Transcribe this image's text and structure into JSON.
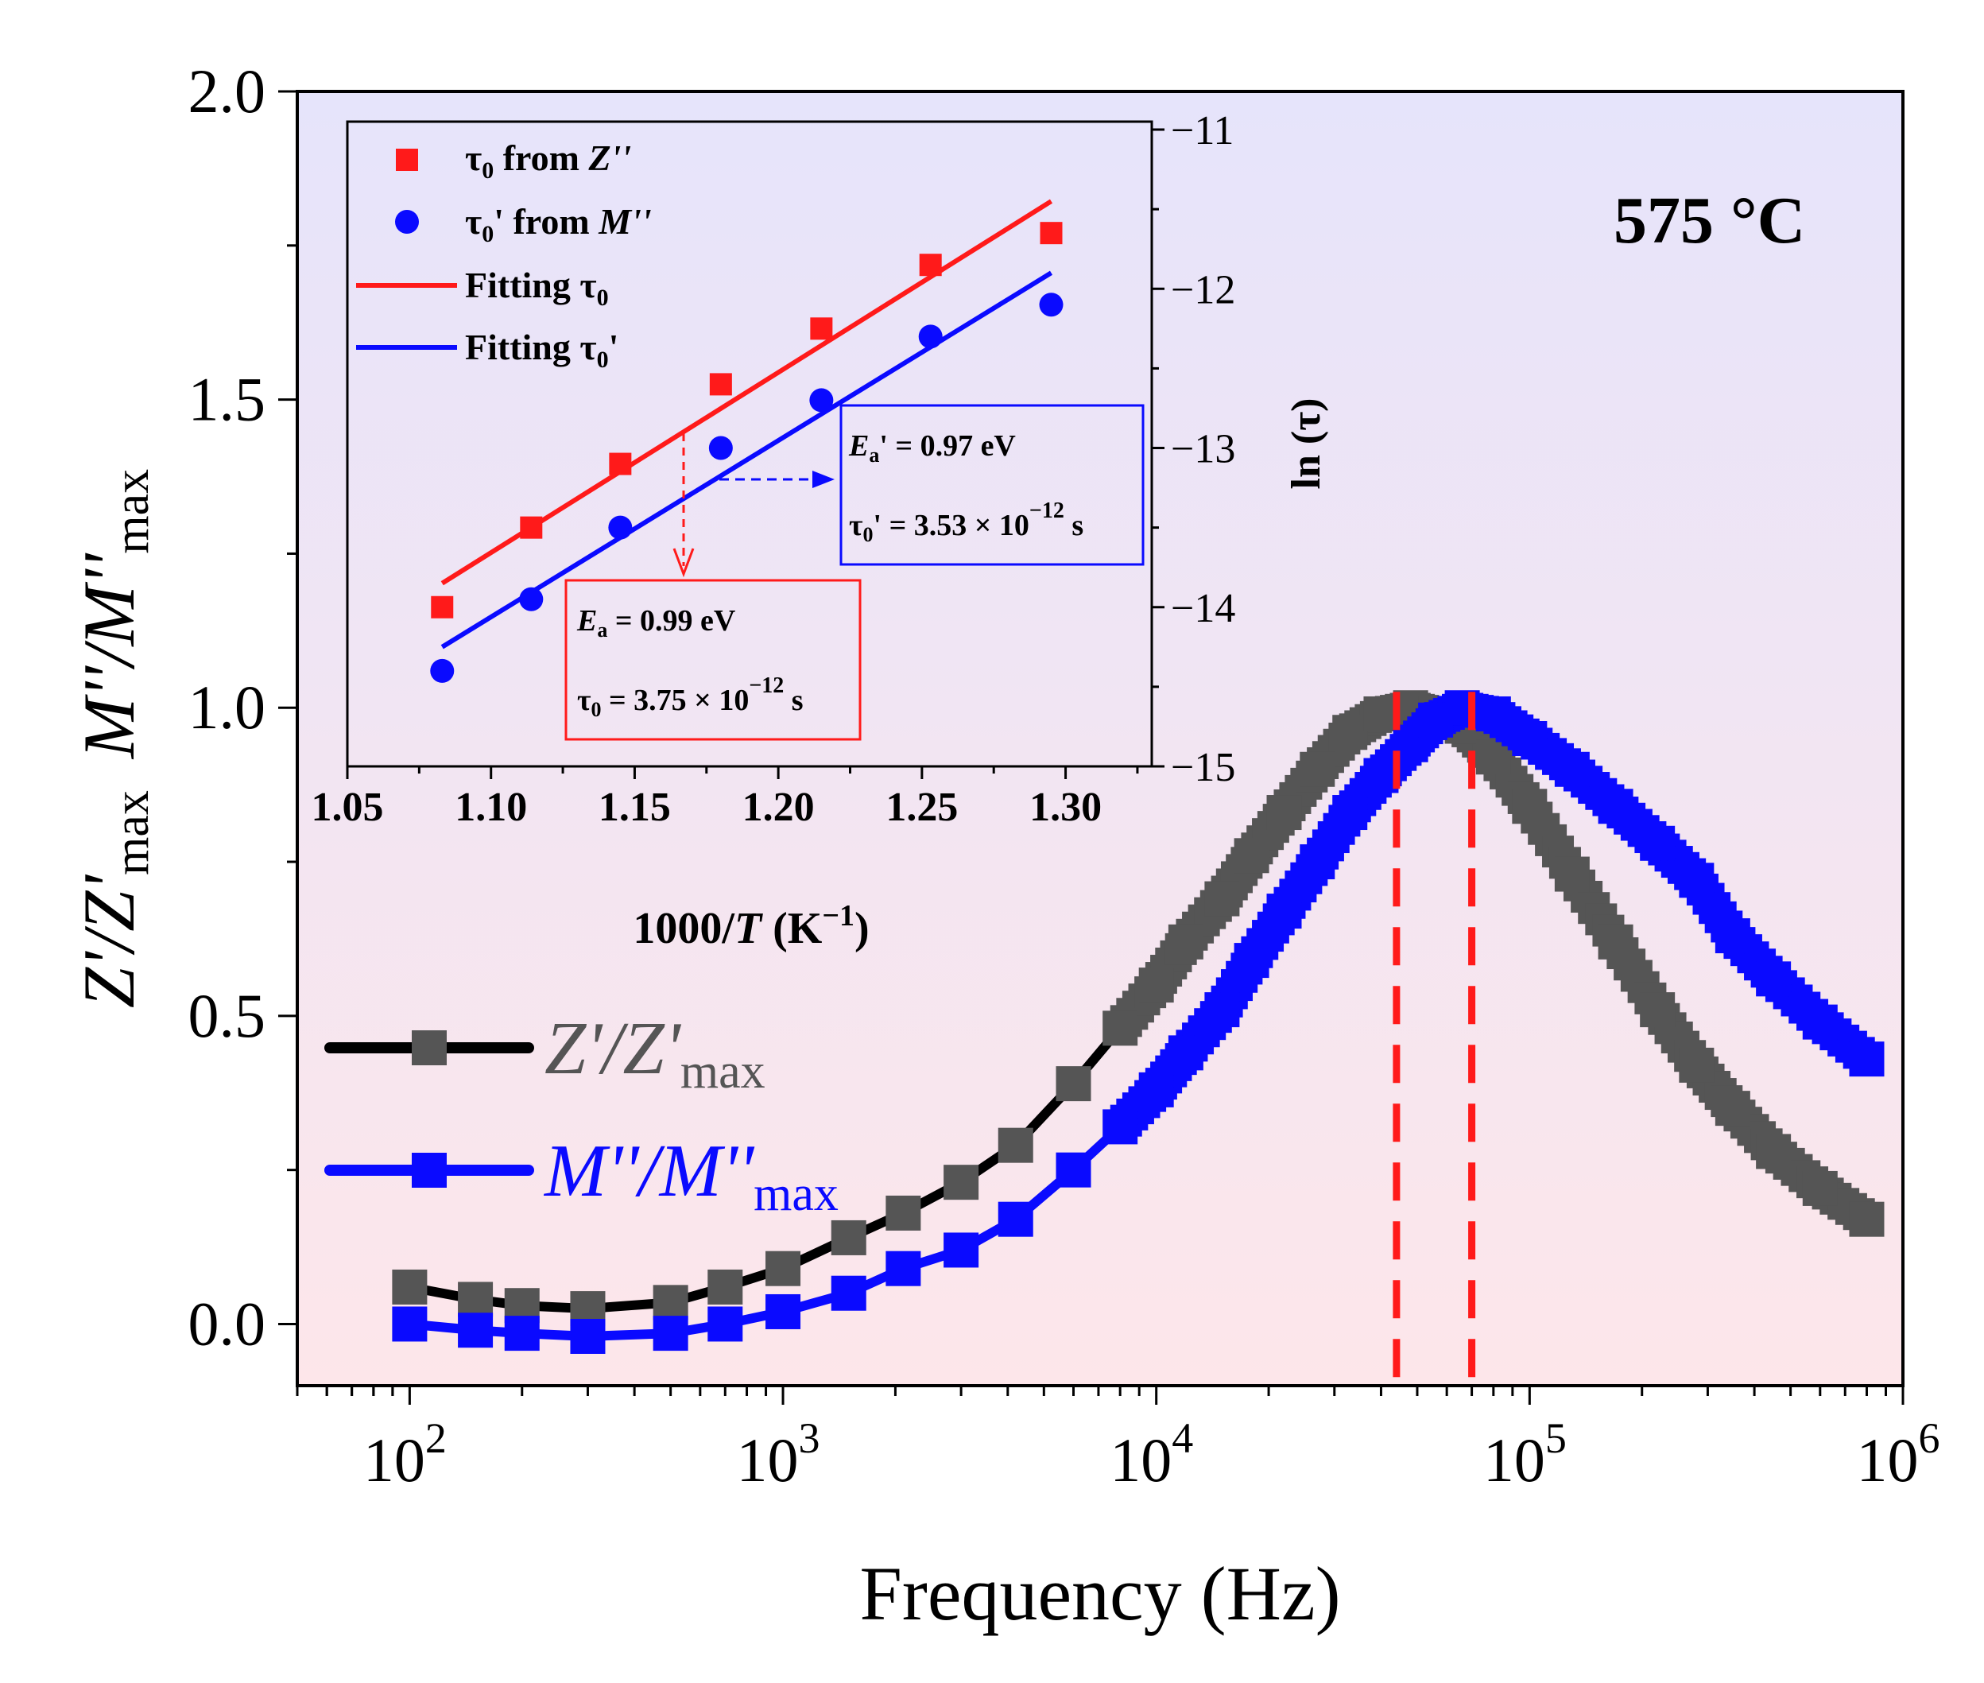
{
  "chart_data": [
    {
      "id": "main",
      "type": "line",
      "x_scale": "log",
      "xlabel": "Frequency (Hz)",
      "ylabel": "Z'/Z'max   M''/M''max",
      "xlim": [
        50,
        1000000
      ],
      "ylim": [
        -0.1,
        2.0
      ],
      "x_tick_labels": [
        "10^2",
        "10^3",
        "10^4",
        "10^5",
        "10^6"
      ],
      "y_tick_labels": [
        "0.0",
        "0.5",
        "1.0",
        "1.5",
        "2.0"
      ],
      "annotation": "575 °C",
      "peak_markers_hz": [
        44000,
        70000
      ],
      "legend": [
        {
          "name": "Z'/Z'max",
          "color": "#555555"
        },
        {
          "name": "M''/M''max",
          "color": "#0a0aff"
        }
      ],
      "series": [
        {
          "name": "Z'/Z'max",
          "line_color": "#000000",
          "marker_color": "#555555",
          "x": [
            100,
            150,
            200,
            300,
            500,
            700,
            1000,
            1500,
            2100,
            3000,
            4200,
            6000,
            8000,
            10000,
            12000,
            15000,
            18000,
            22000,
            27000,
            33000,
            40000,
            48000,
            56000,
            66000,
            80000,
            100000,
            130000,
            170000,
            220000,
            280000,
            350000,
            450000,
            600000,
            800000
          ],
          "y": [
            0.06,
            0.04,
            0.03,
            0.025,
            0.035,
            0.06,
            0.09,
            0.14,
            0.18,
            0.23,
            0.29,
            0.39,
            0.48,
            0.55,
            0.62,
            0.69,
            0.76,
            0.83,
            0.9,
            0.96,
            0.99,
            1.0,
            0.99,
            0.97,
            0.92,
            0.84,
            0.73,
            0.62,
            0.51,
            0.42,
            0.35,
            0.28,
            0.22,
            0.17
          ]
        },
        {
          "name": "M''/M''max",
          "line_color": "#0a0aff",
          "marker_color": "#0a0aff",
          "x": [
            100,
            150,
            200,
            300,
            500,
            700,
            1000,
            1500,
            2100,
            3000,
            4200,
            6000,
            8000,
            10000,
            12000,
            15000,
            18000,
            22000,
            27000,
            33000,
            40000,
            48000,
            56000,
            66000,
            80000,
            100000,
            130000,
            170000,
            220000,
            280000,
            350000,
            450000,
            600000,
            800000
          ],
          "y": [
            0.0,
            -0.01,
            -0.015,
            -0.02,
            -0.015,
            0.0,
            0.02,
            0.05,
            0.09,
            0.12,
            0.17,
            0.25,
            0.32,
            0.38,
            0.44,
            0.51,
            0.59,
            0.67,
            0.75,
            0.83,
            0.89,
            0.94,
            0.98,
            1.0,
            0.99,
            0.95,
            0.9,
            0.84,
            0.78,
            0.72,
            0.63,
            0.56,
            0.49,
            0.43
          ]
        }
      ]
    },
    {
      "id": "inset",
      "type": "scatter",
      "xlabel": "1000/T (K^-1)",
      "ylabel": "ln (τ)",
      "xlim": [
        1.05,
        1.33
      ],
      "ylim": [
        -15.0,
        -10.95
      ],
      "x_tick_labels": [
        "1.05",
        "1.10",
        "1.15",
        "1.20",
        "1.25",
        "1.30"
      ],
      "y_tick_labels": [
        "−11",
        "−12",
        "−13",
        "−14",
        "−15"
      ],
      "legend": [
        {
          "name": "τ0 from Z''",
          "kind": "square",
          "color": "#ff1a1a"
        },
        {
          "name": "τ0' from M''",
          "kind": "circle",
          "color": "#0a0aff"
        },
        {
          "name": "Fitting τ0",
          "kind": "line",
          "color": "#ff1a1a"
        },
        {
          "name": "Fitting τ0'",
          "kind": "line",
          "color": "#0a0aff"
        }
      ],
      "series": [
        {
          "name": "τ0 from Z''",
          "marker": "square",
          "color": "#ff1a1a",
          "x": [
            1.083,
            1.114,
            1.145,
            1.18,
            1.215,
            1.253,
            1.295
          ],
          "y": [
            -14.0,
            -13.5,
            -13.1,
            -12.6,
            -12.25,
            -11.85,
            -11.65
          ],
          "fit": {
            "x": [
              1.083,
              1.295
            ],
            "y": [
              -13.85,
              -11.45
            ]
          }
        },
        {
          "name": "τ0' from M''",
          "marker": "circle",
          "color": "#0a0aff",
          "x": [
            1.083,
            1.114,
            1.145,
            1.18,
            1.215,
            1.253,
            1.295
          ],
          "y": [
            -14.4,
            -13.95,
            -13.5,
            -13.0,
            -12.7,
            -12.3,
            -12.1
          ],
          "fit": {
            "x": [
              1.083,
              1.295
            ],
            "y": [
              -14.25,
              -11.9
            ]
          }
        }
      ],
      "annotations": {
        "red_box_line1": "Ea = 0.99 eV",
        "red_box_line2": "τ0 = 3.75 × 10−12 s",
        "blue_box_line1": "Ea' = 0.97 eV",
        "blue_box_line2": "τ0' = 3.53 × 10−12 s"
      }
    }
  ],
  "text": {
    "xlabel": "Frequency (Hz)",
    "temperature": "575 °C",
    "legend_z_base": "Z'/Z'",
    "legend_z_sub": "max",
    "legend_m_base": "M''/M''",
    "legend_m_sub": "max",
    "ylabel_z_base": "Z'/Z'",
    "ylabel_z_sub": "max",
    "ylabel_m_base": "M''/M''",
    "ylabel_m_sub": "max",
    "x_tick_base": "10",
    "x_tick_exps": [
      "2",
      "3",
      "4",
      "5",
      "6"
    ],
    "inset_leg1_tau": "τ",
    "inset_leg1_sub": "0",
    "inset_leg1_from": " from ",
    "inset_leg1_var": "Z''",
    "inset_leg2_tau": "τ",
    "inset_leg2_sub": "0",
    "inset_leg2_from": "' from ",
    "inset_leg2_var": "M''",
    "inset_leg3_text": "Fitting τ",
    "inset_leg3_sub": "0",
    "inset_leg4_text": "Fitting τ",
    "inset_leg4_sub": "0",
    "inset_leg4_suffix": "'",
    "inset_xlabel_pre": "1000/",
    "inset_xlabel_T": "T",
    "inset_xlabel_post": " (K",
    "inset_xlabel_exp": "−1",
    "inset_xlabel_close": ")",
    "inset_ylabel": "ln (τ)",
    "red_E": "E",
    "red_E_sub": "a",
    "red_E_val": " = 0.99 eV",
    "red_tau": "τ",
    "red_tau_sub": "0",
    "red_tau_val": " = 3.75 × 10",
    "red_tau_exp": "−12",
    "red_tau_unit": " s",
    "blue_E": "E",
    "blue_E_sub": "a",
    "blue_E_val": "' = 0.97 eV",
    "blue_tau": "τ",
    "blue_tau_sub": "0",
    "blue_tau_val": "' = 3.53 × 10",
    "blue_tau_exp": "−12",
    "blue_tau_unit": " s"
  }
}
